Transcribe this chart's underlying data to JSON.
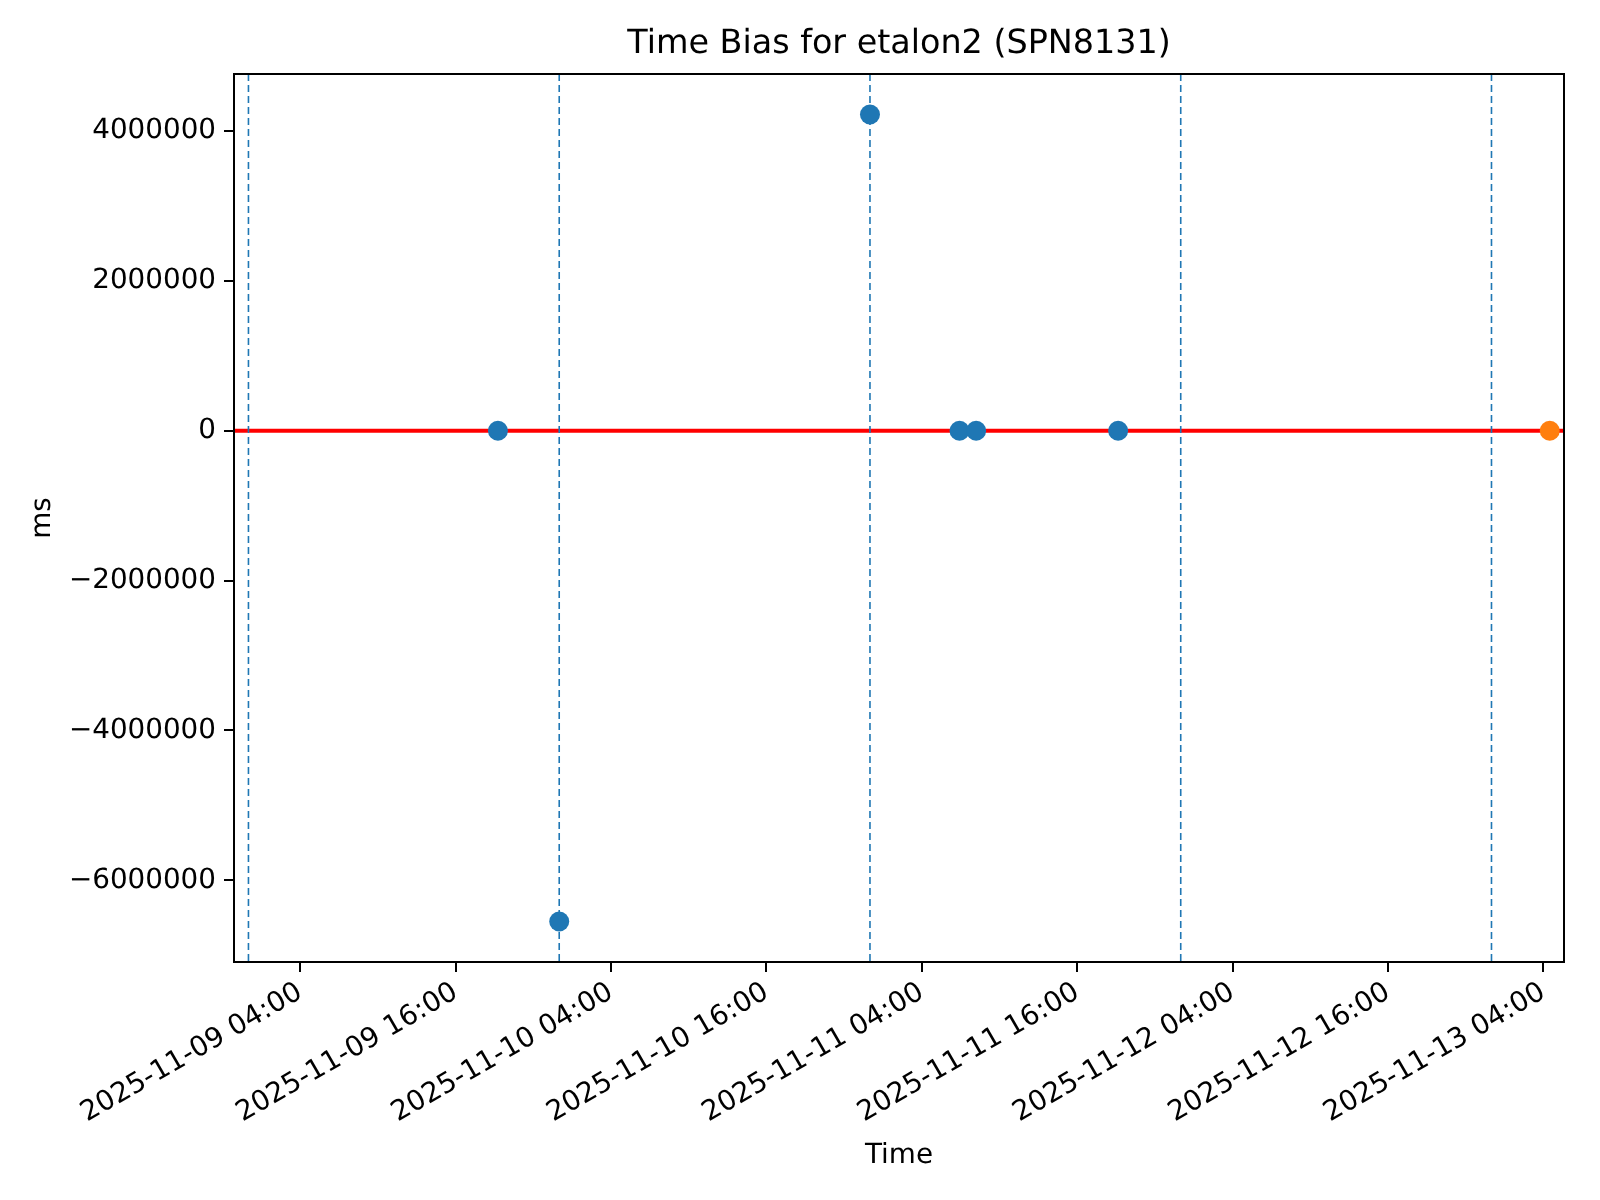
{
  "chart_data": {
    "type": "scatter",
    "title": "Time Bias for etalon2 (SPN8131)",
    "xlabel": "Time",
    "ylabel": "ms",
    "series": [
      {
        "color": "#1f77b4",
        "x": [
          "2025-11-09T19:16",
          "2025-11-10T00:00",
          "2025-11-11T00:00",
          "2025-11-11T06:55",
          "2025-11-11T08:12",
          "2025-11-11T19:10"
        ],
        "values": [
          0,
          -6550000,
          4220000,
          0,
          0,
          0
        ]
      },
      {
        "color": "#ff7f0e",
        "x": [
          "2025-11-13T04:30"
        ],
        "values": [
          0
        ]
      }
    ],
    "xlim": [
      "2025-11-08T22:53",
      "2025-11-13T05:36"
    ],
    "xticks": [
      {
        "value": "2025-11-09T04:00",
        "label": "2025-11-09 04:00"
      },
      {
        "value": "2025-11-09T16:00",
        "label": "2025-11-09 16:00"
      },
      {
        "value": "2025-11-10T04:00",
        "label": "2025-11-10 04:00"
      },
      {
        "value": "2025-11-10T16:00",
        "label": "2025-11-10 16:00"
      },
      {
        "value": "2025-11-11T04:00",
        "label": "2025-11-11 04:00"
      },
      {
        "value": "2025-11-11T16:00",
        "label": "2025-11-11 16:00"
      },
      {
        "value": "2025-11-12T04:00",
        "label": "2025-11-12 04:00"
      },
      {
        "value": "2025-11-12T16:00",
        "label": "2025-11-12 16:00"
      },
      {
        "value": "2025-11-13T04:00",
        "label": "2025-11-13 04:00"
      }
    ],
    "ylim": [
      -7090000,
      4760000
    ],
    "yticks": [
      {
        "value": -6000000,
        "label": "−6000000"
      },
      {
        "value": -4000000,
        "label": "−4000000"
      },
      {
        "value": -2000000,
        "label": "−2000000"
      },
      0,
      2000000,
      4000000
    ],
    "ref_lines": [
      {
        "axis": "y",
        "value": 0,
        "color": "#ff0000",
        "line_style": "solid"
      },
      {
        "axis": "x",
        "value": "2025-11-09T00:00",
        "color": "#1f77b4",
        "line_style": "dashed"
      },
      {
        "axis": "x",
        "value": "2025-11-10T00:00",
        "color": "#1f77b4",
        "line_style": "dashed"
      },
      {
        "axis": "x",
        "value": "2025-11-11T00:00",
        "color": "#1f77b4",
        "line_style": "dashed"
      },
      {
        "axis": "x",
        "value": "2025-11-12T00:00",
        "color": "#1f77b4",
        "line_style": "dashed"
      },
      {
        "axis": "x",
        "value": "2025-11-13T00:00",
        "color": "#1f77b4",
        "line_style": "dashed"
      }
    ],
    "marker": "circle"
  }
}
